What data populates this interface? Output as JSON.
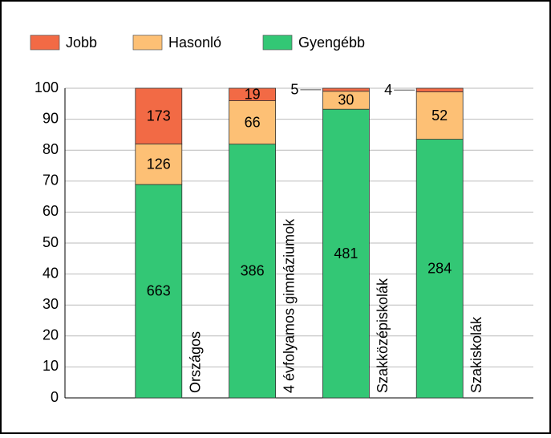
{
  "chart_data": {
    "type": "bar",
    "stacked": "percent",
    "categories": [
      "Országos",
      "4 évfolyamos gimnáziumok",
      "Szakközépiskolák",
      "Szakiskolák"
    ],
    "series": [
      {
        "name": "Jobb",
        "color": "#f26a45",
        "values": [
          173,
          19,
          5,
          4
        ]
      },
      {
        "name": "Hasonló",
        "color": "#fdc075",
        "values": [
          126,
          66,
          30,
          52
        ]
      },
      {
        "name": "Gyengébb",
        "color": "#33c775",
        "values": [
          663,
          386,
          481,
          284
        ]
      }
    ],
    "ylim": [
      0,
      100
    ],
    "yticks": [
      0,
      10,
      20,
      30,
      40,
      50,
      60,
      70,
      80,
      90,
      100
    ],
    "grid": true,
    "legend": "top"
  }
}
